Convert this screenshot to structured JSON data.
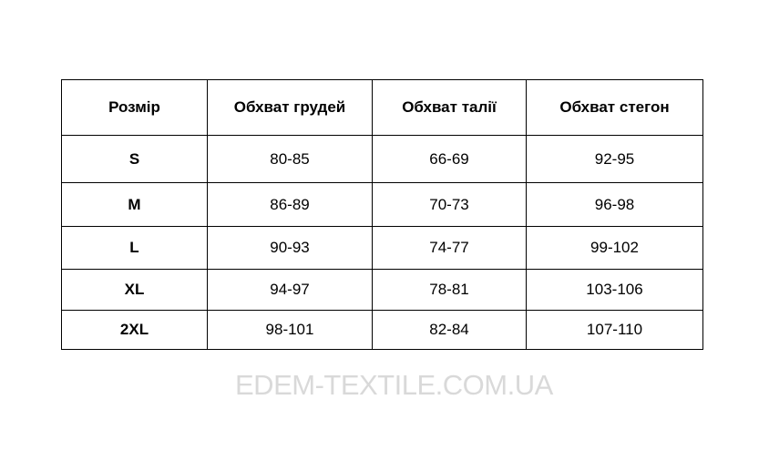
{
  "table": {
    "headers": [
      "Розмір",
      "Обхват грудей",
      "Обхват талії",
      "Обхват стегон"
    ],
    "rows": [
      [
        "S",
        "80-85",
        "66-69",
        "92-95"
      ],
      [
        "M",
        "86-89",
        "70-73",
        "96-98"
      ],
      [
        "L",
        "90-93",
        "74-77",
        "99-102"
      ],
      [
        "XL",
        "94-97",
        "78-81",
        "103-106"
      ],
      [
        "2XL",
        "98-101",
        "82-84",
        "107-110"
      ]
    ]
  },
  "watermark": "EDEM-TEXTILE.COM.UA"
}
